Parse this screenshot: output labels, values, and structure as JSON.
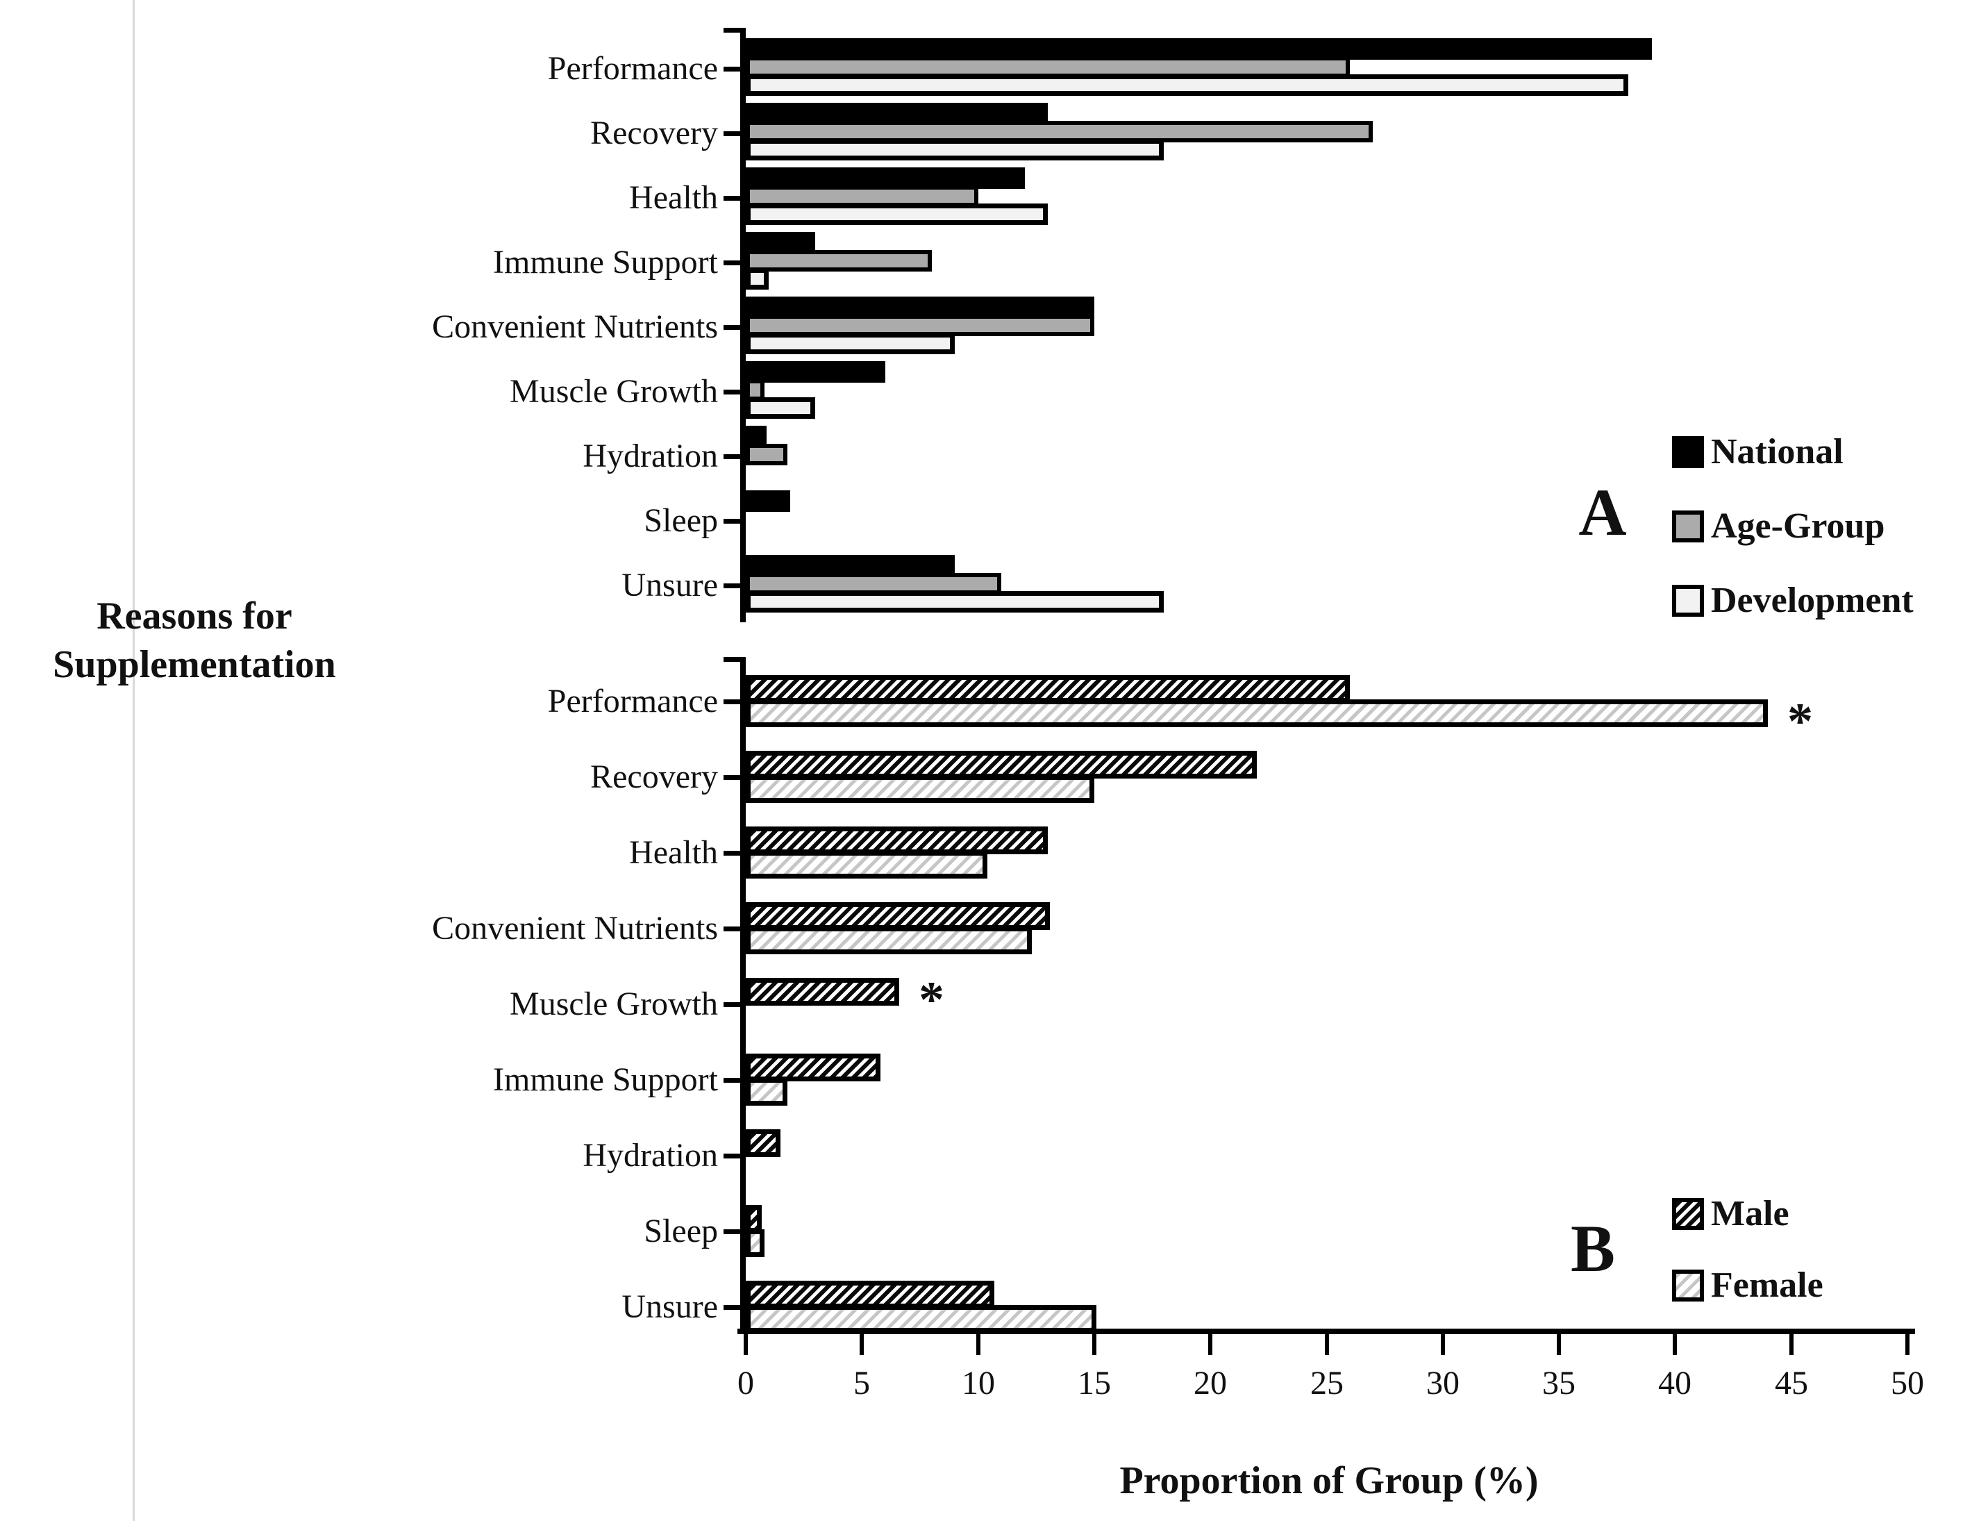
{
  "labels": {
    "y_axis_line1": "Reasons for",
    "y_axis_line2": "Supplementation",
    "x_axis": "Proportion of Group (%)"
  },
  "axis": {
    "xlim": [
      0,
      50
    ],
    "x_ticks": [
      0,
      5,
      10,
      15,
      20,
      25,
      30,
      35,
      40,
      45,
      50
    ]
  },
  "colors": {
    "national_fill": "#000000",
    "age_group_fill": "#ababab",
    "development_fill": "#f2f2f2",
    "male_hatch": "#0a0a0a",
    "female_hatch": "#c6c6c6",
    "bar_border": "#000000",
    "text": "#111111"
  },
  "chart_data": [
    {
      "type": "bar",
      "orientation": "horizontal",
      "panel_label": "A",
      "xlabel": "Proportion of Group (%)",
      "ylabel": "Reasons for Supplementation",
      "xlim": [
        0,
        50
      ],
      "grid": false,
      "legend_position": "right",
      "categories": [
        "Performance",
        "Recovery",
        "Health",
        "Immune Support",
        "Convenient Nutrients",
        "Muscle Growth",
        "Hydration",
        "Sleep",
        "Unsure"
      ],
      "series": [
        {
          "name": "National",
          "style": "national",
          "values": [
            39,
            13,
            12,
            3,
            15,
            6,
            0.9,
            1.9,
            9
          ]
        },
        {
          "name": "Age-Group",
          "style": "agegroup",
          "values": [
            26,
            27,
            10,
            8,
            15,
            0.8,
            1.8,
            0,
            11
          ]
        },
        {
          "name": "Development",
          "style": "development",
          "values": [
            38,
            18,
            13,
            1,
            9,
            3,
            0,
            0,
            18
          ]
        }
      ],
      "annotations": []
    },
    {
      "type": "bar",
      "orientation": "horizontal",
      "panel_label": "B",
      "xlabel": "Proportion of Group (%)",
      "ylabel": "Reasons for Supplementation",
      "xlim": [
        0,
        50
      ],
      "grid": false,
      "legend_position": "right",
      "categories": [
        "Performance",
        "Recovery",
        "Health",
        "Convenient Nutrients",
        "Muscle Growth",
        "Immune Support",
        "Hydration",
        "Sleep",
        "Unsure"
      ],
      "series": [
        {
          "name": "Male",
          "style": "male",
          "values": [
            26,
            22,
            13,
            13.1,
            6.6,
            5.8,
            1.5,
            0.7,
            10.7
          ]
        },
        {
          "name": "Female",
          "style": "female",
          "values": [
            44,
            15,
            10.4,
            12.3,
            0,
            1.8,
            0,
            0.8,
            15.1
          ]
        }
      ],
      "annotations": [
        {
          "category": "Performance",
          "series": "Female",
          "symbol": "*"
        },
        {
          "category": "Muscle Growth",
          "series": "Male",
          "symbol": "*"
        }
      ]
    }
  ]
}
